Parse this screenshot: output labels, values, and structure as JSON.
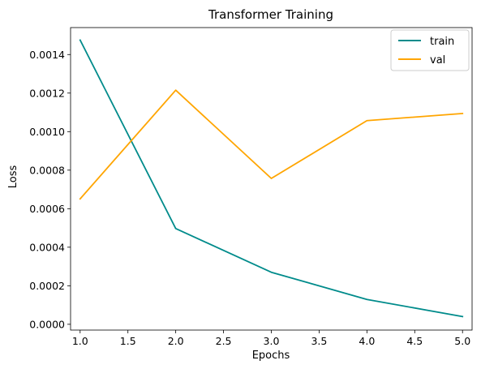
{
  "chart_data": {
    "type": "line",
    "title": "Transformer Training",
    "xlabel": "Epochs",
    "ylabel": "Loss",
    "x": [
      1,
      2,
      3,
      4,
      5
    ],
    "xlim": [
      0.9,
      5.1
    ],
    "ylim": [
      -3e-05,
      0.00154
    ],
    "x_ticks": [
      1.0,
      1.5,
      2.0,
      2.5,
      3.0,
      3.5,
      4.0,
      4.5,
      5.0
    ],
    "x_tick_labels": [
      "1.0",
      "1.5",
      "2.0",
      "2.5",
      "3.0",
      "3.5",
      "4.0",
      "4.5",
      "5.0"
    ],
    "y_ticks": [
      0.0,
      0.0002,
      0.0004,
      0.0006,
      0.0008,
      0.001,
      0.0012,
      0.0014
    ],
    "y_tick_labels": [
      "0.0000",
      "0.0002",
      "0.0004",
      "0.0006",
      "0.0008",
      "0.0010",
      "0.0012",
      "0.0014"
    ],
    "grid": false,
    "legend_position": "top-right",
    "series": [
      {
        "name": "train",
        "color": "#008b8b",
        "values": [
          0.001475,
          0.000497,
          0.00027,
          0.000129,
          4e-05
        ]
      },
      {
        "name": "val",
        "color": "#ffa500",
        "values": [
          0.000651,
          0.001215,
          0.000757,
          0.001057,
          0.001094
        ]
      }
    ]
  }
}
